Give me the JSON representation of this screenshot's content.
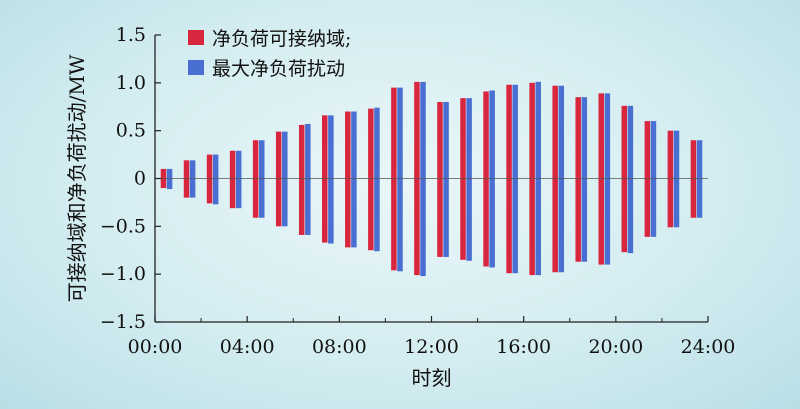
{
  "colors": {
    "series1": "#d8263f",
    "series2": "#4a6fd3",
    "axis": "#222222",
    "zero_line": "#555555"
  },
  "chart_data": {
    "type": "bar",
    "title": "",
    "xlabel": "时刻",
    "ylabel": "可接纳域和净负荷扰动/MW",
    "xlim": [
      0,
      24
    ],
    "ylim": [
      -1.5,
      1.5
    ],
    "xticks": [
      "00:00",
      "04:00",
      "08:00",
      "12:00",
      "16:00",
      "20:00",
      "24:00"
    ],
    "yticks": [
      "1.5",
      "1.0",
      "0.5",
      "0",
      "−0.5",
      "−1.0",
      "−1.5"
    ],
    "ytick_values": [
      1.5,
      1.0,
      0.5,
      0,
      -0.5,
      -1.0,
      -1.5
    ],
    "grid": false,
    "legend_position": "top-left",
    "hours": [
      0,
      1,
      2,
      3,
      4,
      5,
      6,
      7,
      8,
      9,
      10,
      11,
      12,
      13,
      14,
      15,
      16,
      17,
      18,
      19,
      20,
      21,
      22,
      23
    ],
    "series": [
      {
        "name": "净负荷可接纳域;",
        "upper": [
          0.1,
          0.19,
          0.25,
          0.29,
          0.4,
          0.49,
          0.56,
          0.66,
          0.7,
          0.73,
          0.95,
          1.01,
          0.8,
          0.84,
          0.91,
          0.98,
          1.0,
          0.97,
          0.85,
          0.89,
          0.76,
          0.6,
          0.5,
          0.4
        ],
        "lower": [
          -0.1,
          -0.2,
          -0.26,
          -0.31,
          -0.41,
          -0.5,
          -0.59,
          -0.67,
          -0.72,
          -0.75,
          -0.96,
          -1.01,
          -0.82,
          -0.85,
          -0.92,
          -0.99,
          -1.01,
          -0.98,
          -0.87,
          -0.9,
          -0.77,
          -0.61,
          -0.51,
          -0.41
        ]
      },
      {
        "name": "最大净负荷扰动",
        "upper": [
          0.1,
          0.19,
          0.25,
          0.29,
          0.4,
          0.49,
          0.57,
          0.66,
          0.7,
          0.74,
          0.95,
          1.01,
          0.8,
          0.84,
          0.92,
          0.98,
          1.01,
          0.97,
          0.85,
          0.89,
          0.76,
          0.6,
          0.5,
          0.4
        ],
        "lower": [
          -0.11,
          -0.2,
          -0.27,
          -0.31,
          -0.41,
          -0.5,
          -0.59,
          -0.68,
          -0.72,
          -0.76,
          -0.97,
          -1.02,
          -0.82,
          -0.86,
          -0.93,
          -0.99,
          -1.01,
          -0.98,
          -0.87,
          -0.9,
          -0.78,
          -0.61,
          -0.51,
          -0.41
        ]
      }
    ]
  }
}
